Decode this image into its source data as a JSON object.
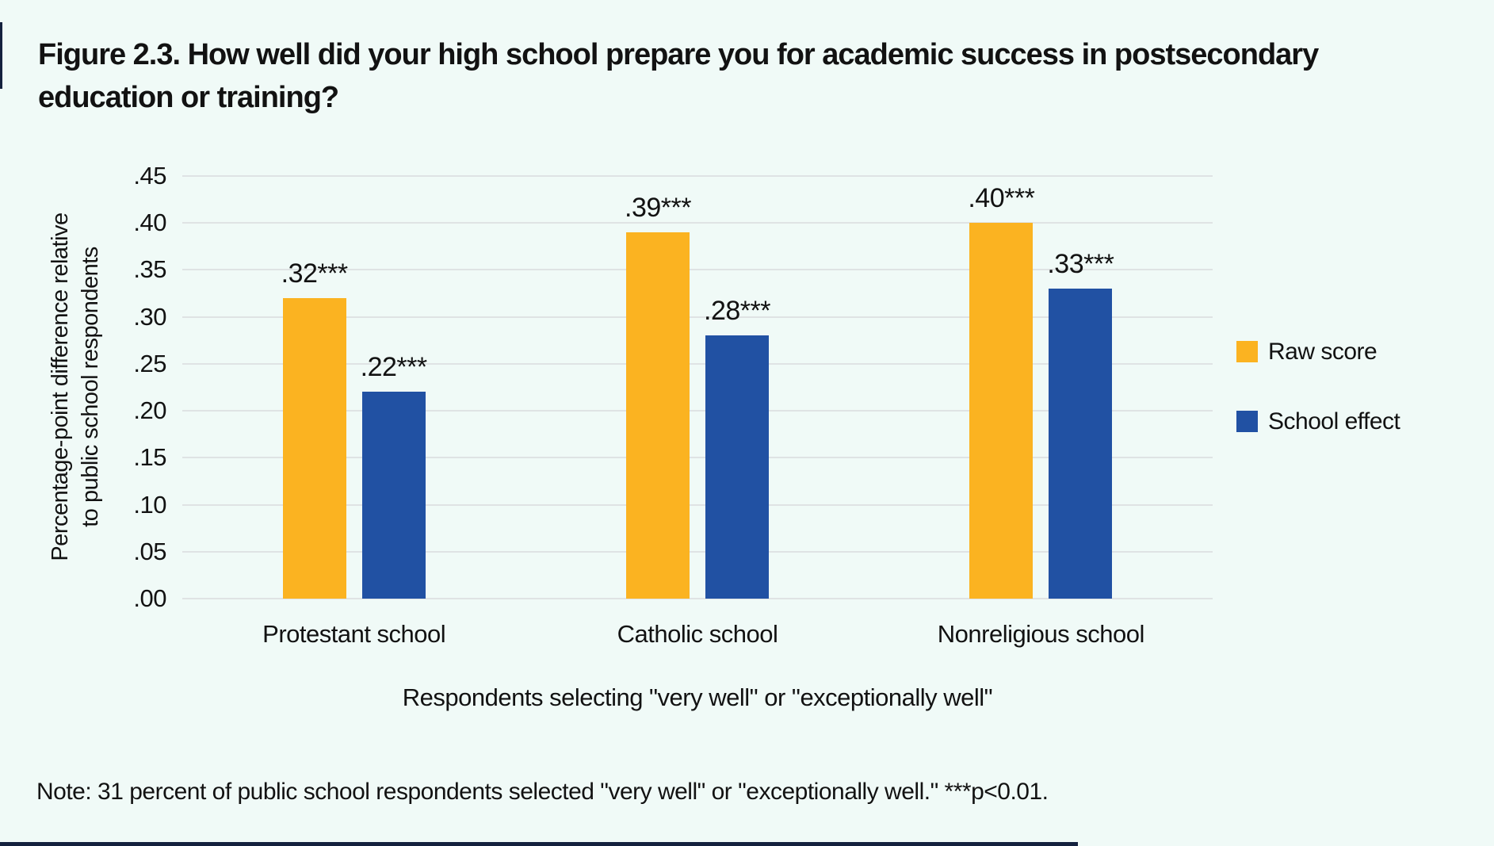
{
  "page": {
    "background": "#f0faf7",
    "accent_dark": "#14213e"
  },
  "figure": {
    "title_lines": [
      "Figure 2.3. How well did your high school prepare you for academic success in postsecondary",
      "education or training?"
    ],
    "note": "Note: 31 percent of public school respondents selected \"very well\" or \"exceptionally well.\" ***p<0.01."
  },
  "chart_data": {
    "type": "bar",
    "title": "Figure 2.3. How well did your high school prepare you for academic success in postsecondary education or training?",
    "categories": [
      "Protestant school",
      "Catholic school",
      "Nonreligious school"
    ],
    "series": [
      {
        "name": "Raw score",
        "color": "#fbb321",
        "values": [
          0.32,
          0.39,
          0.4
        ],
        "labels": [
          ".32***",
          ".39***",
          ".40***"
        ]
      },
      {
        "name": "School effect",
        "color": "#2151a3",
        "values": [
          0.22,
          0.28,
          0.33
        ],
        "labels": [
          ".22***",
          ".28***",
          ".33***"
        ]
      }
    ],
    "ylabel_lines": [
      "Percentage-point difference relative",
      "to public school respondents"
    ],
    "yticks_top_to_bottom": [
      ".45",
      ".40",
      ".35",
      ".30",
      ".25",
      ".20",
      ".15",
      ".10",
      ".05",
      ".00"
    ],
    "ylim": [
      0,
      0.45
    ],
    "xlabel": "Respondents selecting \"very well\" or \"exceptionally well\"",
    "grid": "horizontal",
    "grid_color": "#dfe3e4",
    "legend_position": "right"
  }
}
